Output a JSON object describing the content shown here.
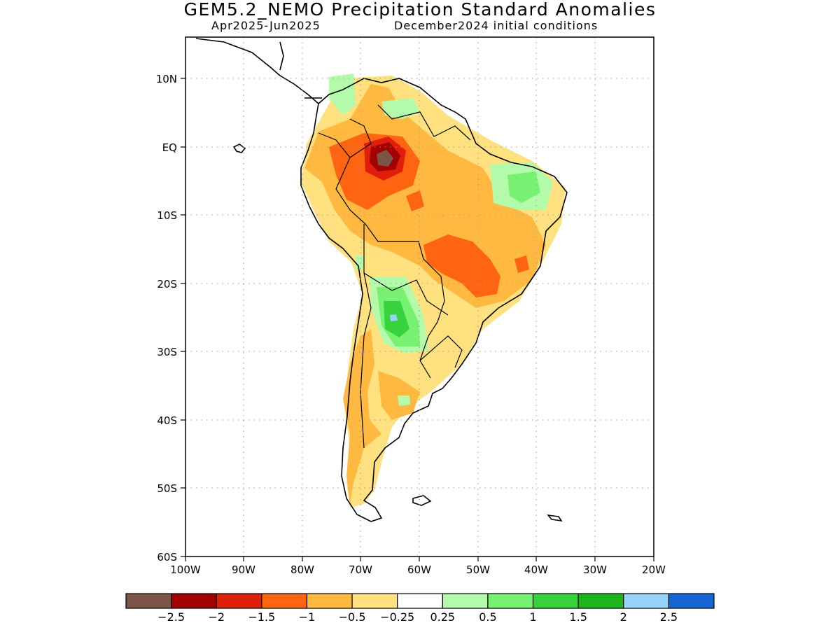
{
  "header": {
    "title": "GEM5.2_NEMO Precipitation Standard Anomalies",
    "period": "Apr2025-Jun2025",
    "init": "December2024 initial conditions"
  },
  "axes": {
    "y_ticks": [
      "10N",
      "EQ",
      "10S",
      "20S",
      "30S",
      "40S",
      "50S",
      "60S"
    ],
    "x_ticks": [
      "100W",
      "90W",
      "80W",
      "70W",
      "60W",
      "50W",
      "40W",
      "30W",
      "20W"
    ]
  },
  "colorbar": {
    "colors": [
      "#7a5446",
      "#a30000",
      "#e01e0b",
      "#ff6410",
      "#ffb941",
      "#ffe180",
      "#ffffff",
      "#b4faab",
      "#78f072",
      "#37d23c",
      "#1eb41e",
      "#96d2fa",
      "#1464d2"
    ],
    "labels": [
      "-2.5",
      "-2",
      "-1.5",
      "-1",
      "-0.5",
      "-0.25",
      "0.25",
      "0.5",
      "1",
      "1.5",
      "2",
      "2.5"
    ]
  }
}
